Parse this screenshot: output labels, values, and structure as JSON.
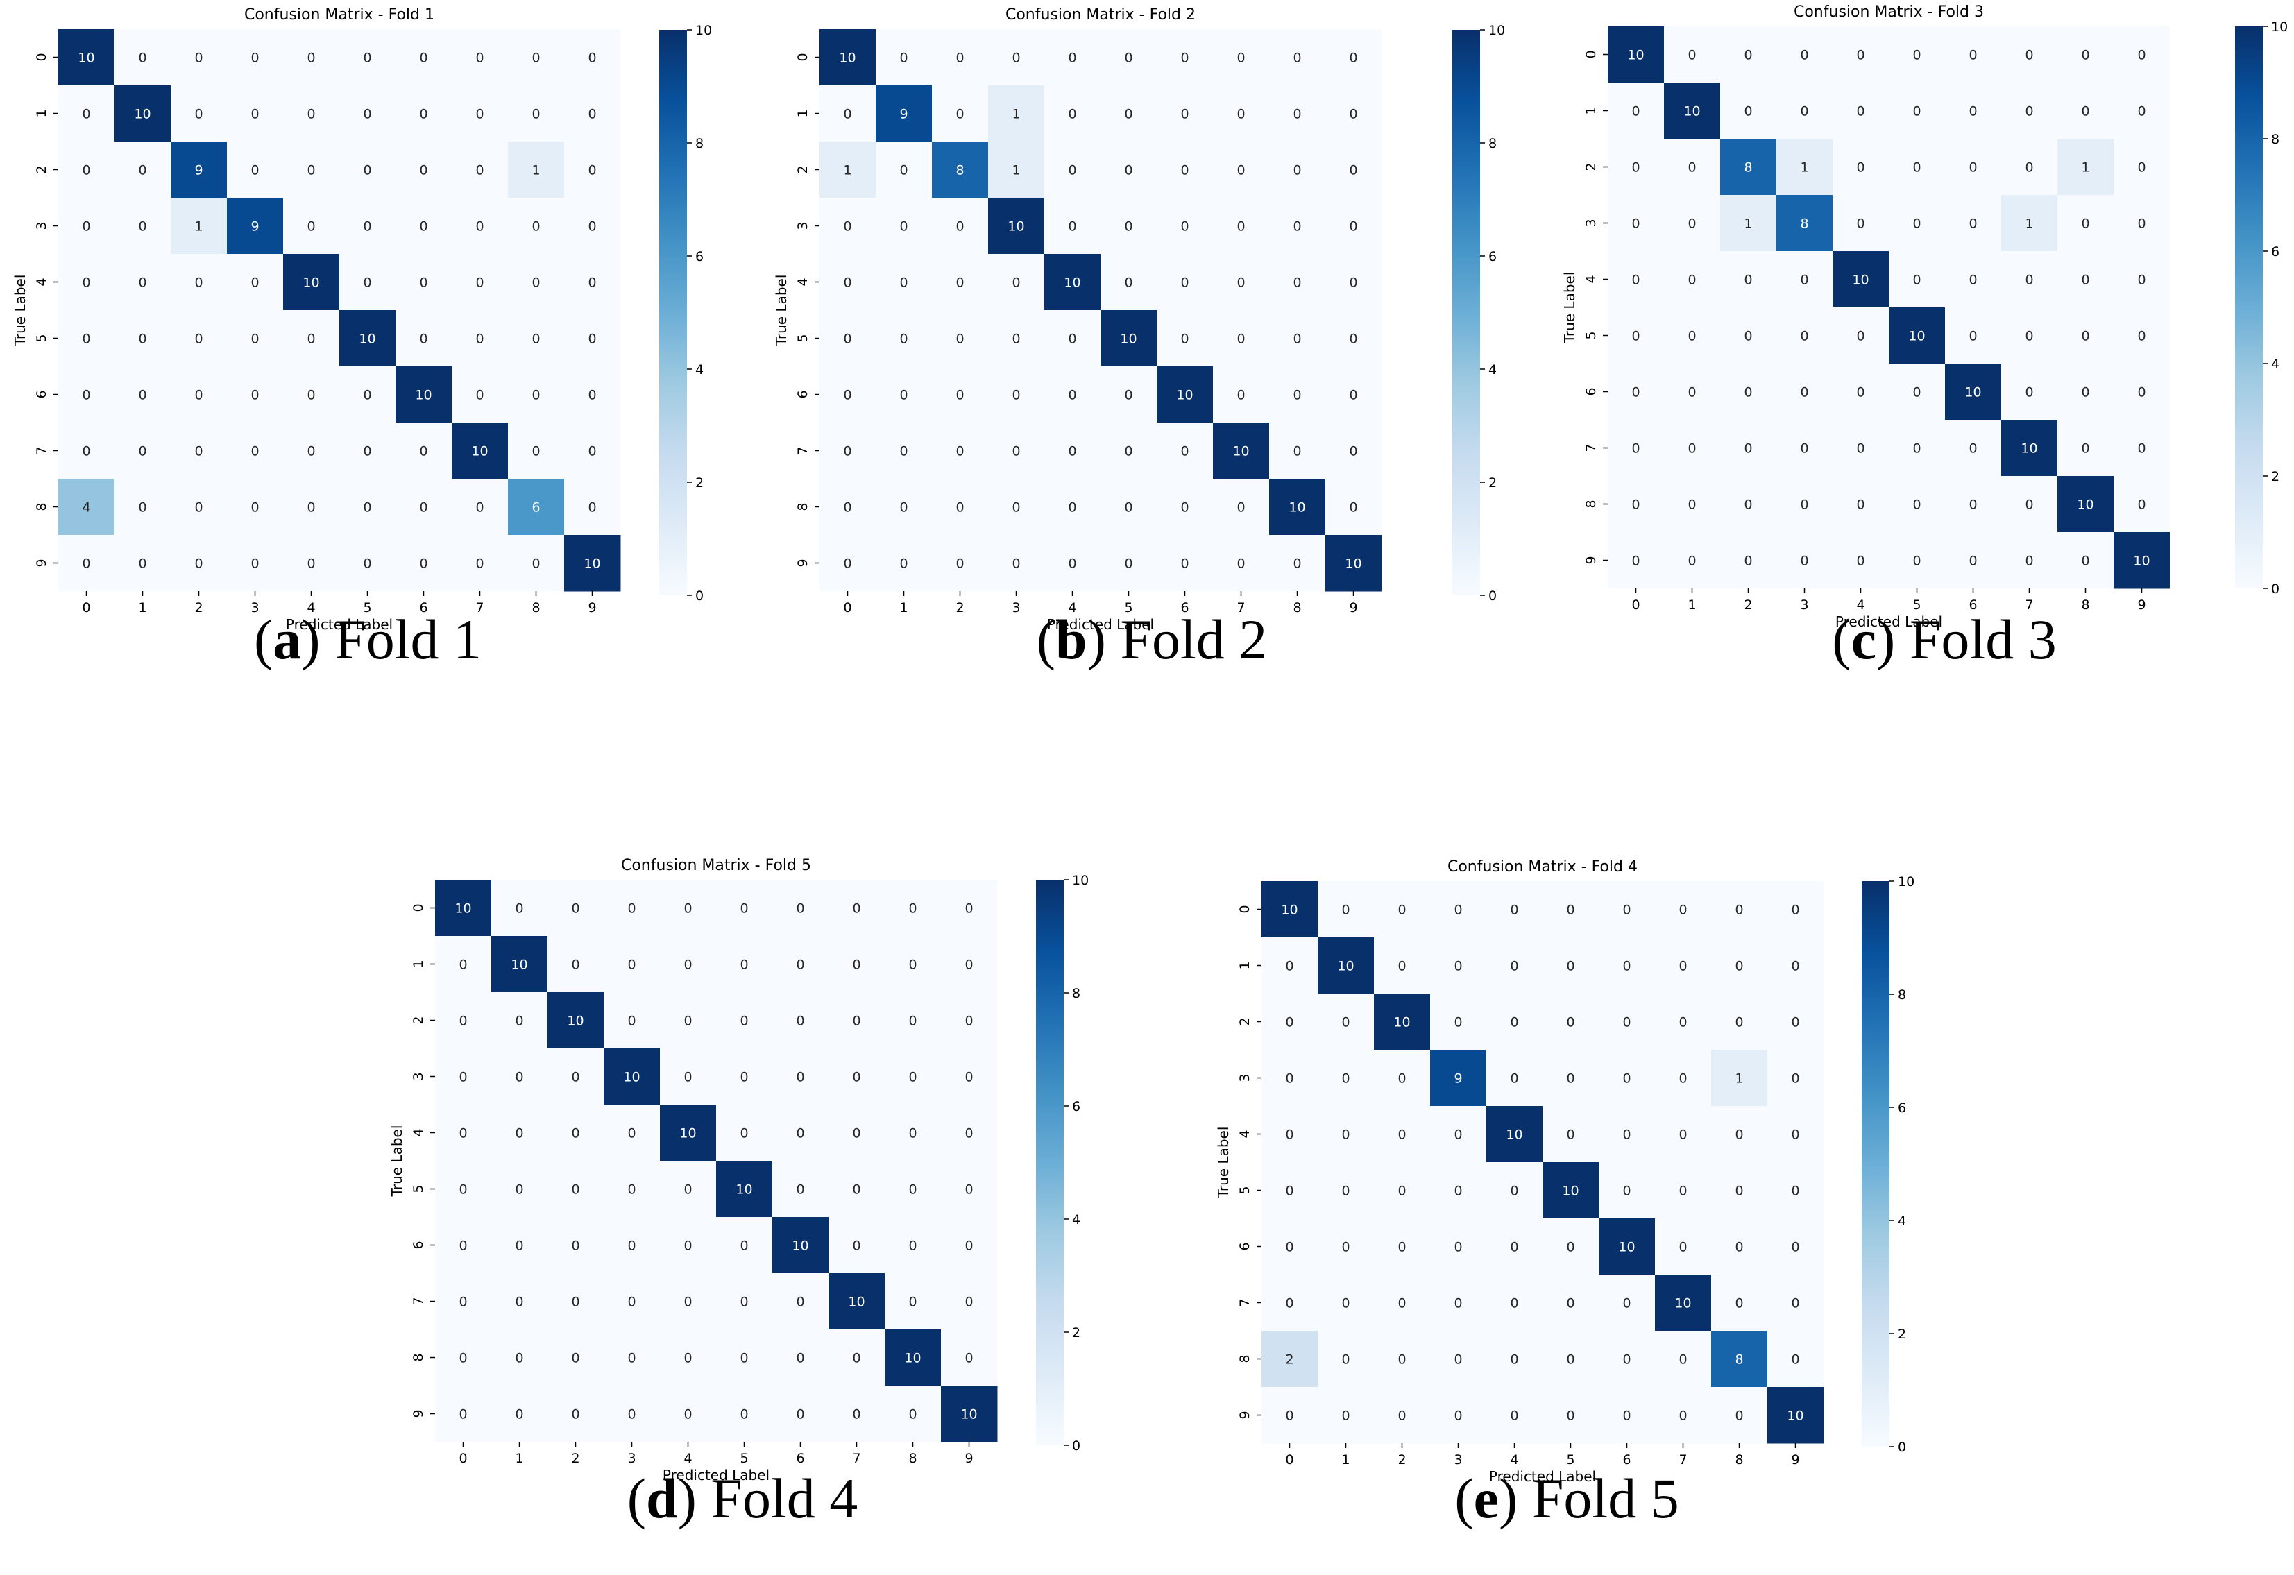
{
  "figure": {
    "panels": [
      {
        "id": "a",
        "caption_letter": "a",
        "caption_text": "Fold 1"
      },
      {
        "id": "b",
        "caption_letter": "b",
        "caption_text": "Fold 2"
      },
      {
        "id": "c",
        "caption_letter": "c",
        "caption_text": "Fold 3"
      },
      {
        "id": "d",
        "caption_letter": "d",
        "caption_text": "Fold 4"
      },
      {
        "id": "e",
        "caption_letter": "e",
        "caption_text": "Fold 5"
      }
    ],
    "colors": {
      "colormap": "Blues",
      "cmap_low": "#f7fbff",
      "cmap_high": "#08306b",
      "text_dark": "#262626",
      "text_light": "#ffffff"
    }
  },
  "chart_data": [
    {
      "type": "heatmap",
      "title": "Confusion Matrix - Fold 1",
      "xlabel": "Predicted Label",
      "ylabel": "True Label",
      "x_categories": [
        "0",
        "1",
        "2",
        "3",
        "4",
        "5",
        "6",
        "7",
        "8",
        "9"
      ],
      "y_categories": [
        "0",
        "1",
        "2",
        "3",
        "4",
        "5",
        "6",
        "7",
        "8",
        "9"
      ],
      "colorbar": {
        "range": [
          0,
          10
        ],
        "ticks": [
          "0",
          "2",
          "4",
          "6",
          "8",
          "10"
        ]
      },
      "values": [
        [
          10,
          0,
          0,
          0,
          0,
          0,
          0,
          0,
          0,
          0
        ],
        [
          0,
          10,
          0,
          0,
          0,
          0,
          0,
          0,
          0,
          0
        ],
        [
          0,
          0,
          9,
          0,
          0,
          0,
          0,
          0,
          1,
          0
        ],
        [
          0,
          0,
          1,
          9,
          0,
          0,
          0,
          0,
          0,
          0
        ],
        [
          0,
          0,
          0,
          0,
          10,
          0,
          0,
          0,
          0,
          0
        ],
        [
          0,
          0,
          0,
          0,
          0,
          10,
          0,
          0,
          0,
          0
        ],
        [
          0,
          0,
          0,
          0,
          0,
          0,
          10,
          0,
          0,
          0
        ],
        [
          0,
          0,
          0,
          0,
          0,
          0,
          0,
          10,
          0,
          0
        ],
        [
          4,
          0,
          0,
          0,
          0,
          0,
          0,
          0,
          6,
          0
        ],
        [
          0,
          0,
          0,
          0,
          0,
          0,
          0,
          0,
          0,
          10
        ]
      ]
    },
    {
      "type": "heatmap",
      "title": "Confusion Matrix - Fold 2",
      "xlabel": "Predicted Label",
      "ylabel": "True Label",
      "x_categories": [
        "0",
        "1",
        "2",
        "3",
        "4",
        "5",
        "6",
        "7",
        "8",
        "9"
      ],
      "y_categories": [
        "0",
        "1",
        "2",
        "3",
        "4",
        "5",
        "6",
        "7",
        "8",
        "9"
      ],
      "colorbar": {
        "range": [
          0,
          10
        ],
        "ticks": [
          "0",
          "2",
          "4",
          "6",
          "8",
          "10"
        ]
      },
      "values": [
        [
          10,
          0,
          0,
          0,
          0,
          0,
          0,
          0,
          0,
          0
        ],
        [
          0,
          9,
          0,
          1,
          0,
          0,
          0,
          0,
          0,
          0
        ],
        [
          1,
          0,
          8,
          1,
          0,
          0,
          0,
          0,
          0,
          0
        ],
        [
          0,
          0,
          0,
          10,
          0,
          0,
          0,
          0,
          0,
          0
        ],
        [
          0,
          0,
          0,
          0,
          10,
          0,
          0,
          0,
          0,
          0
        ],
        [
          0,
          0,
          0,
          0,
          0,
          10,
          0,
          0,
          0,
          0
        ],
        [
          0,
          0,
          0,
          0,
          0,
          0,
          10,
          0,
          0,
          0
        ],
        [
          0,
          0,
          0,
          0,
          0,
          0,
          0,
          10,
          0,
          0
        ],
        [
          0,
          0,
          0,
          0,
          0,
          0,
          0,
          0,
          10,
          0
        ],
        [
          0,
          0,
          0,
          0,
          0,
          0,
          0,
          0,
          0,
          10
        ]
      ]
    },
    {
      "type": "heatmap",
      "title": "Confusion Matrix - Fold 3",
      "xlabel": "Predicted Label",
      "ylabel": "True Label",
      "x_categories": [
        "0",
        "1",
        "2",
        "3",
        "4",
        "5",
        "6",
        "7",
        "8",
        "9"
      ],
      "y_categories": [
        "0",
        "1",
        "2",
        "3",
        "4",
        "5",
        "6",
        "7",
        "8",
        "9"
      ],
      "colorbar": {
        "range": [
          0,
          10
        ],
        "ticks": [
          "0",
          "2",
          "4",
          "6",
          "8",
          "10"
        ]
      },
      "values": [
        [
          10,
          0,
          0,
          0,
          0,
          0,
          0,
          0,
          0,
          0
        ],
        [
          0,
          10,
          0,
          0,
          0,
          0,
          0,
          0,
          0,
          0
        ],
        [
          0,
          0,
          8,
          1,
          0,
          0,
          0,
          0,
          1,
          0
        ],
        [
          0,
          0,
          1,
          8,
          0,
          0,
          0,
          1,
          0,
          0
        ],
        [
          0,
          0,
          0,
          0,
          10,
          0,
          0,
          0,
          0,
          0
        ],
        [
          0,
          0,
          0,
          0,
          0,
          10,
          0,
          0,
          0,
          0
        ],
        [
          0,
          0,
          0,
          0,
          0,
          0,
          10,
          0,
          0,
          0
        ],
        [
          0,
          0,
          0,
          0,
          0,
          0,
          0,
          10,
          0,
          0
        ],
        [
          0,
          0,
          0,
          0,
          0,
          0,
          0,
          0,
          10,
          0
        ],
        [
          0,
          0,
          0,
          0,
          0,
          0,
          0,
          0,
          0,
          10
        ]
      ]
    },
    {
      "type": "heatmap",
      "title": "Confusion Matrix - Fold 5",
      "xlabel": "Predicted Label",
      "ylabel": "True Label",
      "x_categories": [
        "0",
        "1",
        "2",
        "3",
        "4",
        "5",
        "6",
        "7",
        "8",
        "9"
      ],
      "y_categories": [
        "0",
        "1",
        "2",
        "3",
        "4",
        "5",
        "6",
        "7",
        "8",
        "9"
      ],
      "colorbar": {
        "range": [
          0,
          10
        ],
        "ticks": [
          "0",
          "2",
          "4",
          "6",
          "8",
          "10"
        ]
      },
      "values": [
        [
          10,
          0,
          0,
          0,
          0,
          0,
          0,
          0,
          0,
          0
        ],
        [
          0,
          10,
          0,
          0,
          0,
          0,
          0,
          0,
          0,
          0
        ],
        [
          0,
          0,
          10,
          0,
          0,
          0,
          0,
          0,
          0,
          0
        ],
        [
          0,
          0,
          0,
          10,
          0,
          0,
          0,
          0,
          0,
          0
        ],
        [
          0,
          0,
          0,
          0,
          10,
          0,
          0,
          0,
          0,
          0
        ],
        [
          0,
          0,
          0,
          0,
          0,
          10,
          0,
          0,
          0,
          0
        ],
        [
          0,
          0,
          0,
          0,
          0,
          0,
          10,
          0,
          0,
          0
        ],
        [
          0,
          0,
          0,
          0,
          0,
          0,
          0,
          10,
          0,
          0
        ],
        [
          0,
          0,
          0,
          0,
          0,
          0,
          0,
          0,
          10,
          0
        ],
        [
          0,
          0,
          0,
          0,
          0,
          0,
          0,
          0,
          0,
          10
        ]
      ]
    },
    {
      "type": "heatmap",
      "title": "Confusion Matrix - Fold 4",
      "xlabel": "Predicted Label",
      "ylabel": "True Label",
      "x_categories": [
        "0",
        "1",
        "2",
        "3",
        "4",
        "5",
        "6",
        "7",
        "8",
        "9"
      ],
      "y_categories": [
        "0",
        "1",
        "2",
        "3",
        "4",
        "5",
        "6",
        "7",
        "8",
        "9"
      ],
      "colorbar": {
        "range": [
          0,
          10
        ],
        "ticks": [
          "0",
          "2",
          "4",
          "6",
          "8",
          "10"
        ]
      },
      "values": [
        [
          10,
          0,
          0,
          0,
          0,
          0,
          0,
          0,
          0,
          0
        ],
        [
          0,
          10,
          0,
          0,
          0,
          0,
          0,
          0,
          0,
          0
        ],
        [
          0,
          0,
          10,
          0,
          0,
          0,
          0,
          0,
          0,
          0
        ],
        [
          0,
          0,
          0,
          9,
          0,
          0,
          0,
          0,
          1,
          0
        ],
        [
          0,
          0,
          0,
          0,
          10,
          0,
          0,
          0,
          0,
          0
        ],
        [
          0,
          0,
          0,
          0,
          0,
          10,
          0,
          0,
          0,
          0
        ],
        [
          0,
          0,
          0,
          0,
          0,
          0,
          10,
          0,
          0,
          0
        ],
        [
          0,
          0,
          0,
          0,
          0,
          0,
          0,
          10,
          0,
          0
        ],
        [
          2,
          0,
          0,
          0,
          0,
          0,
          0,
          0,
          8,
          0
        ],
        [
          0,
          0,
          0,
          0,
          0,
          0,
          0,
          0,
          0,
          10
        ]
      ]
    }
  ]
}
